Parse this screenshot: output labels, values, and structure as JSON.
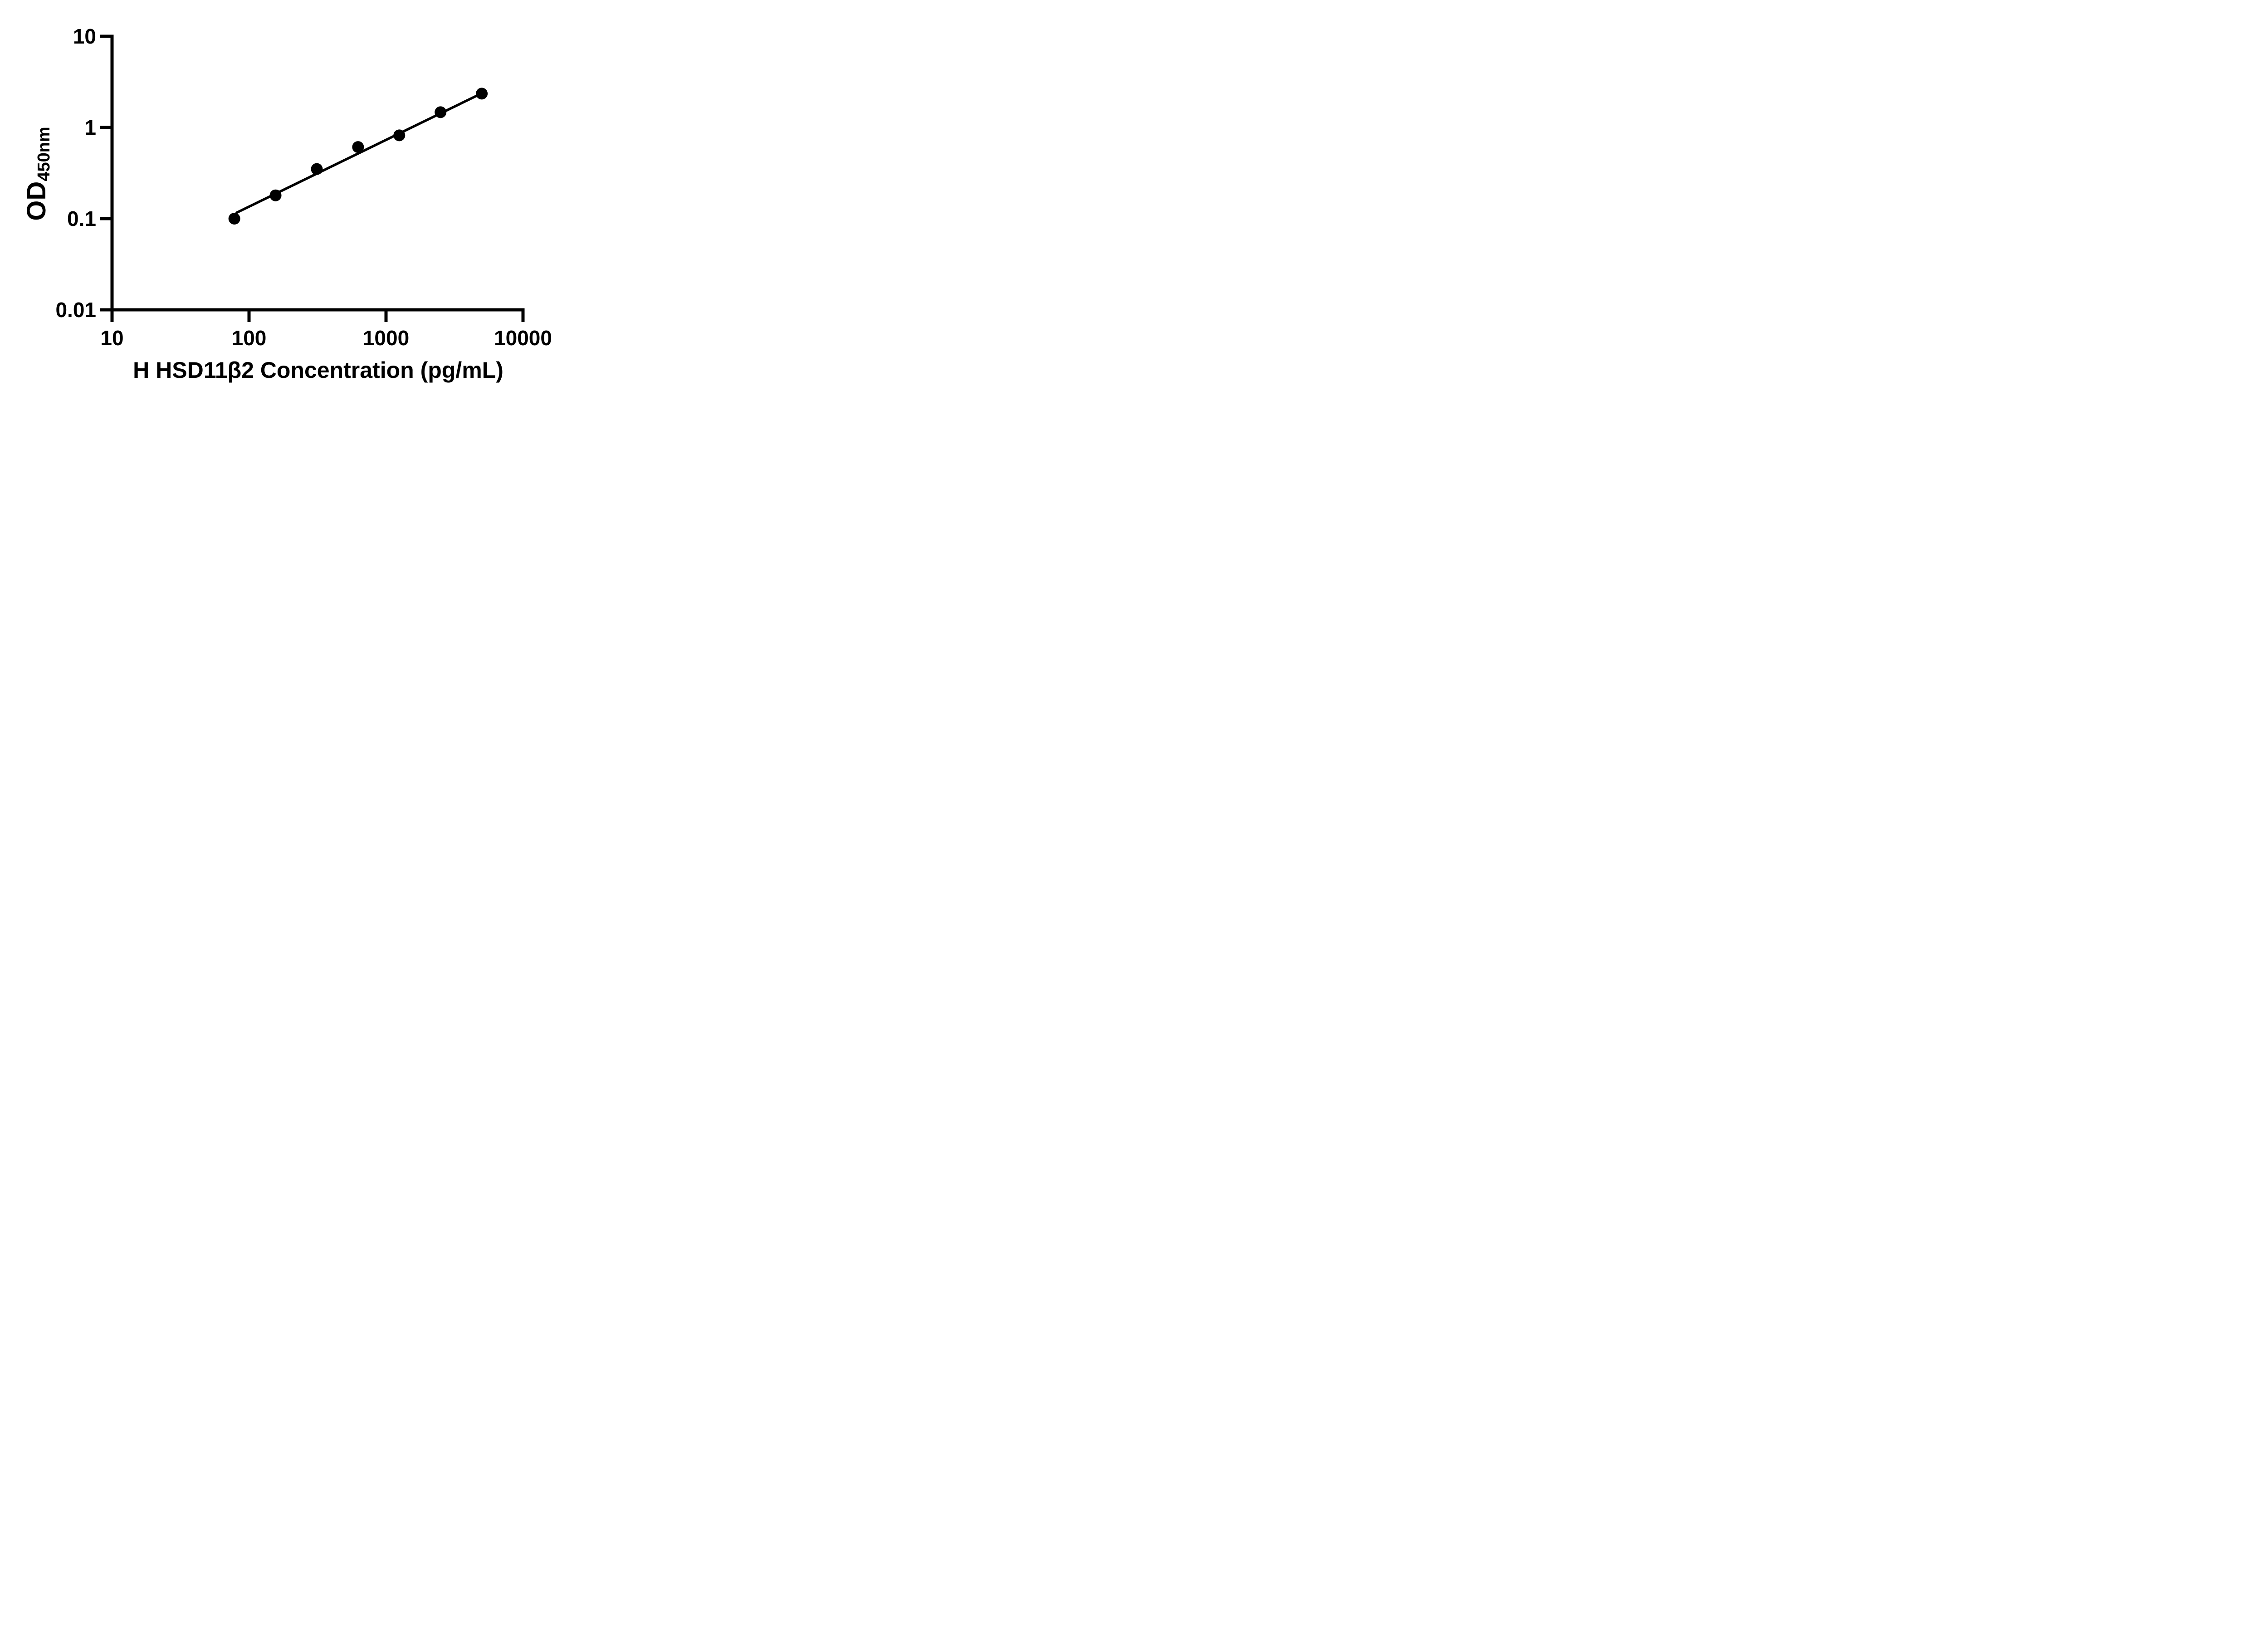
{
  "figure": {
    "background": "#ffffff",
    "ink_color": "#000000"
  },
  "chart_data": {
    "type": "scatter",
    "title": "",
    "xlabel": "H HSD11β2 Concentration (pg/mL)",
    "ylabel": {
      "main": "OD",
      "sub": "450nm"
    },
    "x_scale": "log10",
    "y_scale": "log10",
    "xlim": [
      10,
      10000
    ],
    "ylim": [
      0.01,
      10
    ],
    "grid": false,
    "legend": "none",
    "x_ticks": [
      {
        "value": 10,
        "label": "10"
      },
      {
        "value": 100,
        "label": "100"
      },
      {
        "value": 1000,
        "label": "1000"
      },
      {
        "value": 10000,
        "label": "10000"
      }
    ],
    "y_ticks": [
      {
        "value": 10,
        "label": "10"
      },
      {
        "value": 1,
        "label": "1"
      },
      {
        "value": 0.1,
        "label": "0.1"
      },
      {
        "value": 0.01,
        "label": "0.01"
      }
    ],
    "series": [
      {
        "name": "standard-curve-points",
        "marker": "filled-circle",
        "color": "#000000",
        "points": [
          {
            "x": 78.125,
            "y": 0.1
          },
          {
            "x": 156.25,
            "y": 0.18
          },
          {
            "x": 312.5,
            "y": 0.35
          },
          {
            "x": 625,
            "y": 0.61
          },
          {
            "x": 1250,
            "y": 0.82
          },
          {
            "x": 2500,
            "y": 1.47
          },
          {
            "x": 5000,
            "y": 2.35
          }
        ]
      }
    ],
    "trend_line": {
      "x1": 80,
      "y1": 0.115,
      "x2": 5000,
      "y2": 2.37,
      "color": "#000000"
    }
  }
}
